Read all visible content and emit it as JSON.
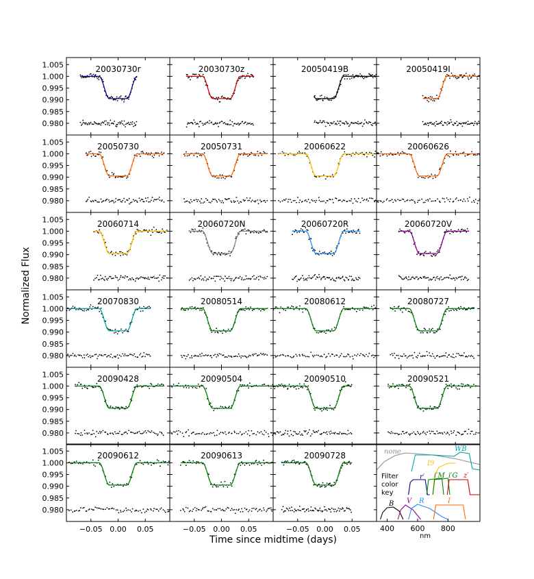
{
  "chart_data": {
    "type": "scatter",
    "ylabel": "Normalized Flux",
    "xlabel": "Time since midtime (days)",
    "ylim": [
      0.975,
      1.008
    ],
    "xlim": [
      -0.095,
      0.095
    ],
    "y_ticks": [
      "1.005",
      "1.000",
      "0.995",
      "0.990",
      "0.985",
      "0.980"
    ],
    "x_ticks": [
      "−0.05",
      "0.00",
      "0.05"
    ],
    "transit_depth": 0.0095,
    "residual_offset": 0.98,
    "panels": [
      {
        "label": "20030730r",
        "color": "#00008b",
        "t_min": -0.07,
        "t_max": 0.035
      },
      {
        "label": "20030730z",
        "color": "#cc0000",
        "t_min": -0.065,
        "t_max": 0.06
      },
      {
        "label": "20050419B",
        "color": "#000000",
        "t_min": -0.02,
        "t_max": 0.095
      },
      {
        "label": "20050419I",
        "color": "#ff6600",
        "t_min": -0.01,
        "t_max": 0.095
      },
      {
        "label": "20050730",
        "color": "#ff6600",
        "t_min": -0.06,
        "t_max": 0.085
      },
      {
        "label": "20050731",
        "color": "#ff6600",
        "t_min": -0.07,
        "t_max": 0.085
      },
      {
        "label": "20060622",
        "color": "#ffbf00",
        "t_min": -0.085,
        "t_max": 0.095
      },
      {
        "label": "20060626",
        "color": "#ff6600",
        "t_min": -0.095,
        "t_max": 0.095
      },
      {
        "label": "20060714",
        "color": "#ffbf00",
        "t_min": -0.045,
        "t_max": 0.09
      },
      {
        "label": "20060720N",
        "color": "#808080",
        "t_min": -0.06,
        "t_max": 0.085
      },
      {
        "label": "20060720R",
        "color": "#1e90ff",
        "t_min": -0.06,
        "t_max": 0.065
      },
      {
        "label": "20060720V",
        "color": "#8b008b",
        "t_min": -0.055,
        "t_max": 0.075
      },
      {
        "label": "20070830",
        "color": "#00a0a0",
        "t_min": -0.095,
        "t_max": 0.06
      },
      {
        "label": "20080514",
        "color": "#008000",
        "t_min": -0.075,
        "t_max": 0.085
      },
      {
        "label": "20080612",
        "color": "#008000",
        "t_min": -0.095,
        "t_max": 0.095
      },
      {
        "label": "20080727",
        "color": "#008000",
        "t_min": -0.07,
        "t_max": 0.085
      },
      {
        "label": "20090428",
        "color": "#008000",
        "t_min": -0.08,
        "t_max": 0.085
      },
      {
        "label": "20090504",
        "color": "#008000",
        "t_min": -0.095,
        "t_max": 0.095
      },
      {
        "label": "20090510",
        "color": "#008000",
        "t_min": -0.095,
        "t_max": 0.05
      },
      {
        "label": "20090521",
        "color": "#008000",
        "t_min": -0.075,
        "t_max": 0.09
      },
      {
        "label": "20090612",
        "color": "#008000",
        "t_min": -0.09,
        "t_max": 0.095
      },
      {
        "label": "20090613",
        "color": "#008000",
        "t_min": -0.075,
        "t_max": 0.095
      },
      {
        "label": "20090728",
        "color": "#008000",
        "t_min": -0.08,
        "t_max": 0.05
      }
    ],
    "filter_key": {
      "title_line1": "Filter",
      "title_line2": "color",
      "title_line3": "key",
      "xlabel": "nm",
      "x_ticks": [
        "400",
        "600",
        "800"
      ],
      "xlim": [
        330,
        1010
      ],
      "filters": [
        {
          "name": "none",
          "color": "#909090"
        },
        {
          "name": "WB",
          "color": "#00a0a0"
        },
        {
          "name": "I9",
          "color": "#ffbf00"
        },
        {
          "name": "r′",
          "color": "#00008b"
        },
        {
          "name": "i′M",
          "color": "#008000"
        },
        {
          "name": "i′G",
          "color": "#008000"
        },
        {
          "name": "z′",
          "color": "#cc0000"
        },
        {
          "name": "B",
          "color": "#000000"
        },
        {
          "name": "V",
          "color": "#8b008b"
        },
        {
          "name": "R",
          "color": "#1e90ff"
        },
        {
          "name": "I",
          "color": "#ff6600"
        }
      ]
    }
  }
}
